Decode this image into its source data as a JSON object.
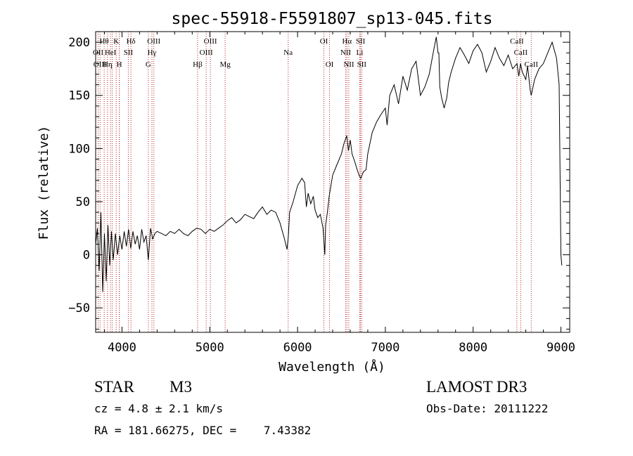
{
  "chart_data": {
    "type": "line",
    "title": "spec-55918-F5591807_sp13-045.fits",
    "xlabel": "Wavelength (Å)",
    "ylabel": "Flux (relative)",
    "xlim": [
      3700,
      9100
    ],
    "ylim": [
      -73,
      210
    ],
    "xticks": [
      4000,
      5000,
      6000,
      7000,
      8000,
      9000
    ],
    "yticks": [
      -50,
      0,
      50,
      100,
      150,
      200
    ],
    "grid": false,
    "series": [
      {
        "name": "spectrum",
        "x": [
          3700,
          3720,
          3740,
          3760,
          3780,
          3800,
          3820,
          3840,
          3860,
          3880,
          3900,
          3925,
          3950,
          3975,
          4000,
          4025,
          4050,
          4075,
          4100,
          4125,
          4150,
          4175,
          4200,
          4225,
          4250,
          4275,
          4300,
          4325,
          4350,
          4375,
          4400,
          4450,
          4500,
          4550,
          4600,
          4650,
          4700,
          4750,
          4800,
          4850,
          4900,
          4950,
          5000,
          5050,
          5100,
          5150,
          5200,
          5250,
          5300,
          5350,
          5400,
          5450,
          5500,
          5550,
          5600,
          5650,
          5700,
          5750,
          5800,
          5850,
          5880,
          5895,
          5910,
          5950,
          6000,
          6050,
          6080,
          6100,
          6120,
          6150,
          6180,
          6200,
          6230,
          6260,
          6290,
          6310,
          6320,
          6340,
          6360,
          6380,
          6400,
          6450,
          6500,
          6530,
          6560,
          6580,
          6600,
          6620,
          6650,
          6680,
          6700,
          6720,
          6750,
          6780,
          6800,
          6850,
          6900,
          6950,
          7000,
          7020,
          7050,
          7100,
          7150,
          7200,
          7250,
          7300,
          7350,
          7400,
          7450,
          7500,
          7550,
          7580,
          7600,
          7610,
          7620,
          7640,
          7670,
          7700,
          7720,
          7750,
          7800,
          7850,
          7900,
          7950,
          8000,
          8050,
          8100,
          8150,
          8200,
          8250,
          8300,
          8350,
          8400,
          8450,
          8500,
          8520,
          8540,
          8560,
          8600,
          8620,
          8650,
          8662,
          8700,
          8750,
          8800,
          8850,
          8900,
          8950,
          8980,
          9000,
          9010
        ],
        "values": [
          10,
          25,
          -15,
          40,
          -35,
          20,
          -25,
          28,
          -10,
          22,
          -5,
          20,
          0,
          18,
          5,
          22,
          8,
          24,
          6,
          22,
          10,
          18,
          5,
          24,
          12,
          18,
          -5,
          25,
          15,
          20,
          22,
          20,
          18,
          22,
          20,
          24,
          20,
          18,
          22,
          25,
          24,
          20,
          24,
          22,
          25,
          28,
          32,
          35,
          30,
          33,
          38,
          36,
          34,
          40,
          45,
          38,
          42,
          40,
          30,
          15,
          5,
          18,
          40,
          50,
          65,
          72,
          68,
          45,
          58,
          48,
          55,
          42,
          35,
          38,
          25,
          0,
          28,
          40,
          55,
          65,
          75,
          85,
          95,
          105,
          112,
          98,
          108,
          95,
          88,
          80,
          75,
          72,
          78,
          80,
          95,
          115,
          125,
          132,
          138,
          122,
          150,
          160,
          142,
          168,
          155,
          175,
          182,
          150,
          158,
          170,
          192,
          205,
          190,
          190,
          158,
          148,
          138,
          148,
          162,
          172,
          185,
          195,
          188,
          180,
          192,
          198,
          190,
          172,
          182,
          195,
          185,
          178,
          188,
          175,
          180,
          168,
          180,
          172,
          165,
          178,
          155,
          150,
          165,
          175,
          180,
          190,
          200,
          185,
          160,
          0,
          -10
        ]
      }
    ],
    "line_markers": [
      {
        "wavelength": 3728,
        "label": "OII",
        "row": 1
      },
      {
        "wavelength": 3750,
        "label": "OIII",
        "row": 2
      },
      {
        "wavelength": 3797,
        "label": "Hθ",
        "row": 0
      },
      {
        "wavelength": 3835,
        "label": "Hη",
        "row": 2
      },
      {
        "wavelength": 3869,
        "label": "HeI",
        "row": 1
      },
      {
        "wavelength": 3889,
        "label": "",
        "row": 1
      },
      {
        "wavelength": 3934,
        "label": "K",
        "row": 0
      },
      {
        "wavelength": 3969,
        "label": "H",
        "row": 2
      },
      {
        "wavelength": 3970,
        "label": "",
        "row": 1
      },
      {
        "wavelength": 4072,
        "label": "SII",
        "row": 1
      },
      {
        "wavelength": 4102,
        "label": "Hδ",
        "row": 0
      },
      {
        "wavelength": 4300,
        "label": "G",
        "row": 2
      },
      {
        "wavelength": 4341,
        "label": "Hγ",
        "row": 1
      },
      {
        "wavelength": 4363,
        "label": "OIII",
        "row": 0
      },
      {
        "wavelength": 4861,
        "label": "Hβ",
        "row": 2
      },
      {
        "wavelength": 4959,
        "label": "OIII",
        "row": 1
      },
      {
        "wavelength": 5007,
        "label": "OIII",
        "row": 0
      },
      {
        "wavelength": 5175,
        "label": "Mg",
        "row": 2
      },
      {
        "wavelength": 5893,
        "label": "Na",
        "row": 1
      },
      {
        "wavelength": 6300,
        "label": "OI",
        "row": 0
      },
      {
        "wavelength": 6364,
        "label": "OI",
        "row": 2
      },
      {
        "wavelength": 6548,
        "label": "NII",
        "row": 1
      },
      {
        "wavelength": 6563,
        "label": "Hα",
        "row": 0
      },
      {
        "wavelength": 6584,
        "label": "NII",
        "row": 2
      },
      {
        "wavelength": 6708,
        "label": "Li",
        "row": 1
      },
      {
        "wavelength": 6717,
        "label": "SII",
        "row": 0
      },
      {
        "wavelength": 6731,
        "label": "SII",
        "row": 2
      },
      {
        "wavelength": 8498,
        "label": "CaII",
        "row": 0
      },
      {
        "wavelength": 8542,
        "label": "CaII",
        "row": 1
      },
      {
        "wavelength": 8662,
        "label": "CaII",
        "row": 2
      }
    ],
    "annotations": {
      "class": "STAR",
      "subclass": "M3",
      "survey": "LAMOST DR3",
      "cz": "cz = 4.8 ± 2.1 km/s",
      "obs_date": "Obs-Date: 20111222",
      "radec": "RA = 181.66275, DEC =    7.43382"
    },
    "colors": {
      "spectrum": "#000000",
      "markers": "#b22222",
      "text": "#000000"
    }
  }
}
